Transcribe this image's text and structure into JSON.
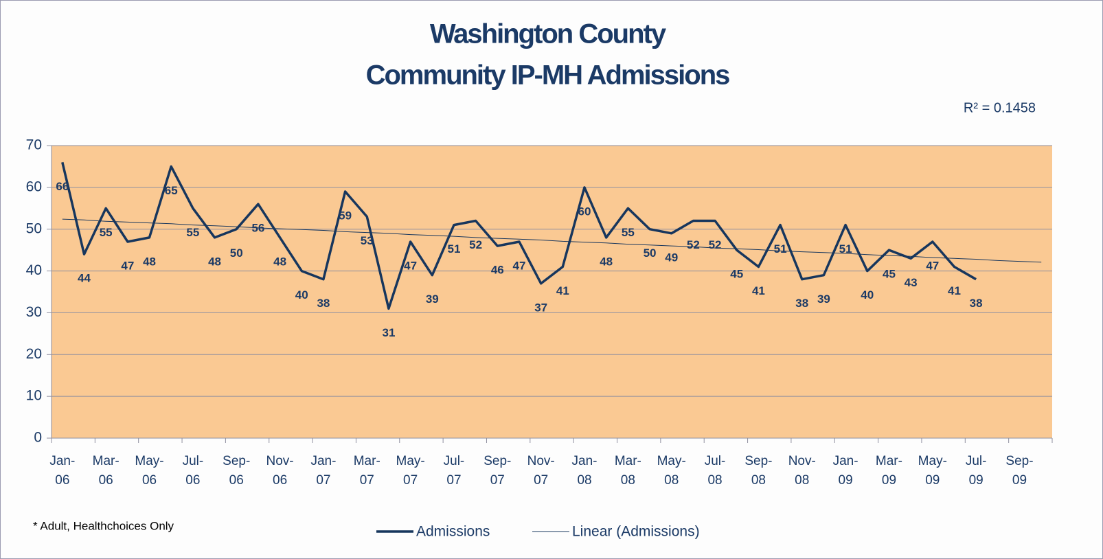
{
  "chart_data": {
    "type": "line",
    "title": "Washington County",
    "subtitle": "Community IP-MH Admissions",
    "annotation": "R² = 0.1458",
    "footnote": "* Adult, Healthchoices Only",
    "categories": [
      "Jan-06",
      null,
      "Mar-06",
      null,
      "May-06",
      null,
      "Jul-06",
      null,
      "Sep-06",
      null,
      "Nov-06",
      null,
      "Jan-07",
      null,
      "Mar-07",
      null,
      "May-07",
      null,
      "Jul-07",
      null,
      "Sep-07",
      null,
      "Nov-07",
      null,
      "Jan-08",
      null,
      "Mar-08",
      null,
      "May-08",
      null,
      "Jul-08",
      null,
      "Sep-08",
      null,
      "Nov-08",
      null,
      "Jan-09",
      null,
      "Mar-09",
      null,
      "May-09",
      null,
      "Jul-09",
      null,
      "Sep-09",
      null
    ],
    "series": [
      {
        "name": "Admissions",
        "color": "#17365d",
        "width": 3.5,
        "data_labels": true,
        "values": [
          66,
          44,
          55,
          47,
          48,
          65,
          55,
          48,
          50,
          56,
          48,
          40,
          38,
          59,
          53,
          31,
          47,
          39,
          51,
          52,
          46,
          47,
          37,
          41,
          60,
          48,
          55,
          50,
          49,
          52,
          52,
          45,
          41,
          51,
          38,
          39,
          51,
          40,
          45,
          43,
          47,
          41,
          38,
          null,
          null,
          null
        ]
      },
      {
        "name": "Linear (Admissions)",
        "color": "#17365d",
        "width": 1,
        "values": [
          52.4,
          52.2,
          51.9,
          51.7,
          51.5,
          51.3,
          51.0,
          50.8,
          50.6,
          50.3,
          50.1,
          49.9,
          49.7,
          49.4,
          49.2,
          49.0,
          48.7,
          48.5,
          48.3,
          48.0,
          47.8,
          47.6,
          47.4,
          47.1,
          46.9,
          46.7,
          46.4,
          46.2,
          46.0,
          45.8,
          45.5,
          45.3,
          45.1,
          44.8,
          44.6,
          44.4,
          44.2,
          43.9,
          43.7,
          43.5,
          43.2,
          43.0,
          42.8,
          42.5,
          42.3,
          42.1
        ]
      }
    ],
    "ylim": [
      0,
      70
    ],
    "yticks": [
      0,
      10,
      20,
      30,
      40,
      50,
      60,
      70
    ],
    "grid": true,
    "plot_background": "#fac993",
    "legend": "bottom"
  }
}
